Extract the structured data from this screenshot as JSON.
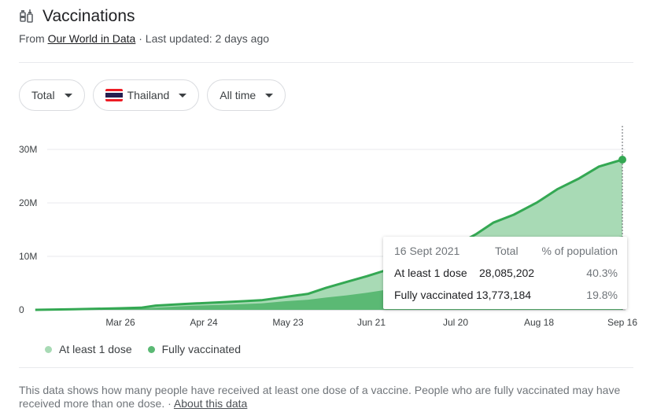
{
  "header": {
    "title": "Vaccinations",
    "source_prefix": "From",
    "source_link": "Our World in Data",
    "updated": "· Last updated: 2 days ago"
  },
  "filters": {
    "metric": "Total",
    "country": "Thailand",
    "range": "All time"
  },
  "tooltip": {
    "date": "16 Sept 2021",
    "col_total": "Total",
    "col_pct": "% of population",
    "rows": [
      {
        "label": "At least 1 dose",
        "total": "28,085,202",
        "pct": "40.3%"
      },
      {
        "label": "Fully vaccinated",
        "total": "13,773,184",
        "pct": "19.8%"
      }
    ]
  },
  "legend": {
    "items": [
      "At least 1 dose",
      "Fully vaccinated"
    ]
  },
  "footnote": {
    "text": "This data shows how many people have received at least one dose of a vaccine. People who are fully vaccinated may have received more than one dose.",
    "sep": "·",
    "link": "About this data"
  },
  "colors": {
    "at_least_one_fill": "#a8dab5",
    "fully_fill": "#5bb974",
    "line": "#34a853",
    "grid": "#e8eaed",
    "flag_red": "#ed1c24",
    "flag_white": "#ffffff",
    "flag_blue": "#241d4f"
  },
  "chart_data": {
    "type": "area",
    "title": "",
    "xlabel": "",
    "ylabel": "",
    "x_ticks": [
      "Mar 26",
      "Apr 24",
      "May 23",
      "Jun 21",
      "Jul 20",
      "Aug 18",
      "Sep 16"
    ],
    "y_ticks": [
      "0",
      "10M",
      "20M",
      "30M"
    ],
    "ylim": [
      0,
      30000000
    ],
    "grid": true,
    "legend_position": "bottom-left",
    "x": [
      "Feb 28",
      "Mar 10",
      "Mar 26",
      "Apr 5",
      "Apr 10",
      "Apr 20",
      "Apr 24",
      "May 5",
      "May 15",
      "May 23",
      "Jun 1",
      "Jun 7",
      "Jun 14",
      "Jun 21",
      "Jun 28",
      "Jul 5",
      "Jul 12",
      "Jul 20",
      "Jul 27",
      "Aug 3",
      "Aug 10",
      "Aug 18",
      "Aug 25",
      "Sep 1",
      "Sep 8",
      "Sep 16"
    ],
    "series": [
      {
        "name": "At least 1 dose",
        "values": [
          0,
          100000,
          300000,
          400000,
          800000,
          1100000,
          1200000,
          1500000,
          1800000,
          2400000,
          3000000,
          4100000,
          5200000,
          6300000,
          7500000,
          8800000,
          10200000,
          12000000,
          14100000,
          16300000,
          17800000,
          20100000,
          22600000,
          24500000,
          26800000,
          28085202
        ]
      },
      {
        "name": "Fully vaccinated",
        "values": [
          0,
          50000,
          150000,
          250000,
          400000,
          700000,
          800000,
          1000000,
          1200000,
          1600000,
          1900000,
          2300000,
          2700000,
          3200000,
          3800000,
          4500000,
          5300000,
          6200000,
          7200000,
          8200000,
          9200000,
          10300000,
          11300000,
          12300000,
          13100000,
          13773184
        ]
      }
    ]
  }
}
